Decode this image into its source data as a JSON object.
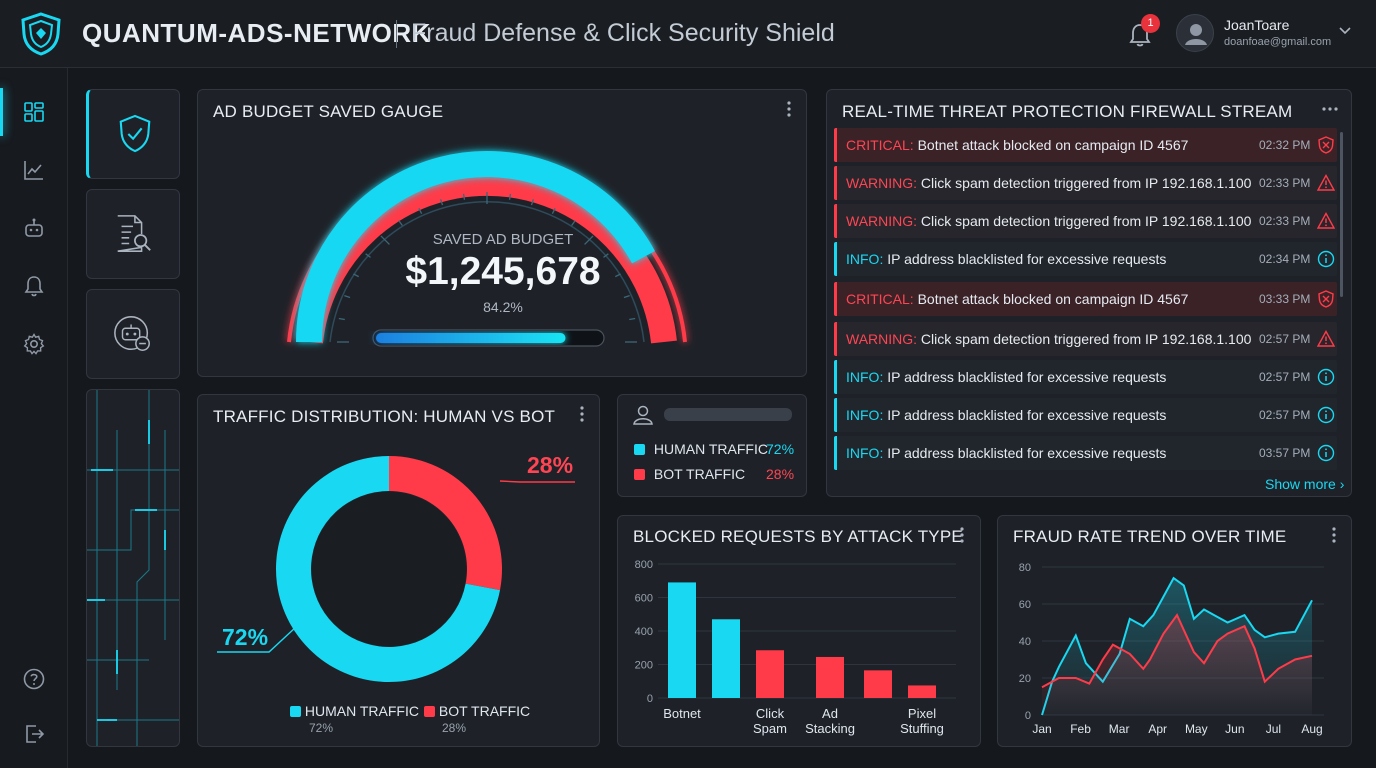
{
  "header": {
    "app_name": "QUANTUM-ADS-NETWORK",
    "subtitle": "Fraud Defense & Click Security Shield",
    "notification_count": "1",
    "user_name": "JoanToare",
    "user_email": "doanfoae@gmail.com"
  },
  "icons": {
    "logo": "shield-logo-icon",
    "notifications": "bell-icon",
    "user": "user-avatar-icon",
    "nav": [
      "dashboard-icon",
      "analytics-icon",
      "bot-icon",
      "bell-icon",
      "gear-icon",
      "help-icon",
      "logout-icon"
    ]
  },
  "gauge": {
    "title": "AD BUDGET SAVED GAUGE",
    "label": "SAVED AD BUDGET",
    "amount": "$1,245,678",
    "percent_text": "84.2%",
    "percent": 84.2
  },
  "traffic": {
    "title": "TRAFFIC DISTRIBUTION: HUMAN VS BOT",
    "human_pct": "72%",
    "bot_pct": "28%",
    "legend_human": "HUMAN TRAFFIC",
    "legend_bot": "BOT TRAFFIC",
    "legend_human_val": "72%",
    "legend_bot_val": "28%"
  },
  "summary": {
    "human_label": "HUMAN TRAFFIC",
    "human_val": "72%",
    "bot_label": "BOT TRAFFIC",
    "bot_val": "28%"
  },
  "threats": {
    "title": "REAL-TIME THREAT PROTECTION FIREWALL STREAM",
    "show_more": "Show more",
    "rows": [
      {
        "level": "CRITICAL:",
        "msg": "Botnet attack blocked on campaign ID 4567",
        "time": "02:32 PM",
        "kind": "crit"
      },
      {
        "level": "WARNING:",
        "msg": "Click spam detection triggered from IP 192.168.1.100",
        "time": "02:33 PM",
        "kind": "warn"
      },
      {
        "level": "WARNING:",
        "msg": "Click spam detection triggered from IP 192.168.1.100",
        "time": "02:33 PM",
        "kind": "warn"
      },
      {
        "level": "INFO:",
        "msg": "IP address blacklisted for excessive requests",
        "time": "02:34 PM",
        "kind": "info"
      },
      {
        "level": "CRITICAL:",
        "msg": "Botnet attack blocked on campaign ID 4567",
        "time": "03:33 PM",
        "kind": "crit"
      },
      {
        "level": "WARNING:",
        "msg": "Click spam detection triggered from IP 192.168.1.100",
        "time": "02:57 PM",
        "kind": "warn"
      },
      {
        "level": "INFO:",
        "msg": "IP address blacklisted for excessive requests",
        "time": "02:57 PM",
        "kind": "info"
      },
      {
        "level": "INFO:",
        "msg": "IP address blacklisted for excessive requests",
        "time": "02:57 PM",
        "kind": "info"
      },
      {
        "level": "INFO:",
        "msg": "IP address blacklisted for excessive requests",
        "time": "03:57 PM",
        "kind": "info"
      }
    ]
  },
  "colors": {
    "accent_cyan": "#19d8f2",
    "alert_red": "#ff3b49",
    "background": "#15181d"
  },
  "chart_data": [
    {
      "type": "pie",
      "title": "TRAFFIC DISTRIBUTION: HUMAN VS BOT",
      "categories": [
        "HUMAN TRAFFIC",
        "BOT TRAFFIC"
      ],
      "values": [
        72,
        28
      ],
      "legend": "bottom"
    },
    {
      "type": "bar",
      "title": "BLOCKED REQUESTS BY ATTACK TYPE",
      "categories": [
        "Botnet",
        "",
        "Click\nSpam",
        "Ad\nStacking",
        "",
        "Pixel\nStuffing"
      ],
      "values": [
        690,
        470,
        285,
        245,
        165,
        75
      ],
      "colors": [
        "#19d8f2",
        "#19d8f2",
        "#ff3b49",
        "#ff3b49",
        "#ff3b49",
        "#ff3b49"
      ],
      "yticks": [
        0,
        200,
        400,
        600,
        800
      ],
      "ylim": [
        0,
        800
      ],
      "grid": true
    },
    {
      "type": "area",
      "title": "FRAUD RATE TREND OVER TIME",
      "x": [
        "Jan",
        "Feb",
        "Mar",
        "Apr",
        "May",
        "Jun",
        "Jul",
        "Aug"
      ],
      "yticks": [
        0,
        20,
        40,
        60,
        80
      ],
      "ylim": [
        0,
        80
      ],
      "grid": true,
      "series": [
        {
          "color": "#19d8f2",
          "points": [
            [
              0,
              0
            ],
            [
              0.3,
              18
            ],
            [
              0.5,
              26
            ],
            [
              1.0,
              43
            ],
            [
              1.3,
              28
            ],
            [
              1.8,
              18
            ],
            [
              2.3,
              33
            ],
            [
              2.6,
              52
            ],
            [
              3.0,
              48
            ],
            [
              3.3,
              54
            ],
            [
              3.9,
              74
            ],
            [
              4.2,
              70
            ],
            [
              4.5,
              52
            ],
            [
              4.8,
              57
            ],
            [
              5.1,
              54
            ],
            [
              5.5,
              50
            ],
            [
              6.0,
              54
            ],
            [
              6.3,
              46
            ],
            [
              6.6,
              42
            ],
            [
              7.0,
              44
            ],
            [
              7.5,
              45
            ],
            [
              8.0,
              62
            ]
          ]
        },
        {
          "color": "#ff3b49",
          "points": [
            [
              0,
              15
            ],
            [
              0.5,
              20
            ],
            [
              1.0,
              20
            ],
            [
              1.4,
              17
            ],
            [
              1.8,
              30
            ],
            [
              2.1,
              38
            ],
            [
              2.6,
              33
            ],
            [
              3.0,
              25
            ],
            [
              3.2,
              30
            ],
            [
              3.6,
              44
            ],
            [
              4.0,
              54
            ],
            [
              4.5,
              34
            ],
            [
              4.8,
              28
            ],
            [
              5.2,
              40
            ],
            [
              5.5,
              44
            ],
            [
              6.0,
              48
            ],
            [
              6.3,
              36
            ],
            [
              6.6,
              18
            ],
            [
              7.0,
              25
            ],
            [
              7.5,
              30
            ],
            [
              8.0,
              32
            ]
          ]
        }
      ]
    }
  ]
}
